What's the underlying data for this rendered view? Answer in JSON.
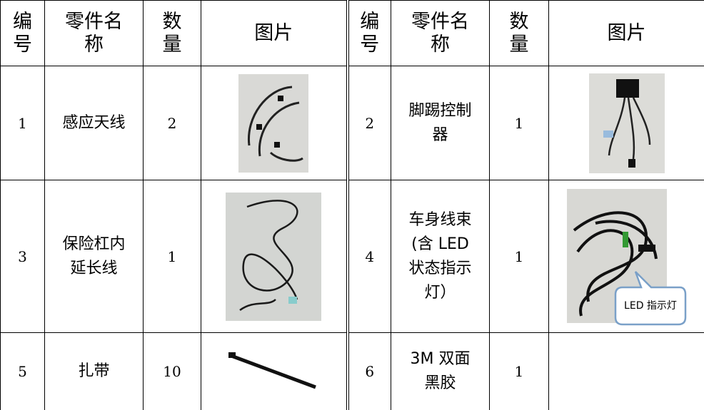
{
  "table": {
    "header": [
      "编号",
      "零件名称",
      "数量",
      "图片",
      "编号",
      "零件名称",
      "数量",
      "图片"
    ],
    "rows": [
      {
        "left": {
          "no": "1",
          "name": "感应天线",
          "qty": "2"
        },
        "right": {
          "no": "2",
          "name": "脚踢控制器",
          "qty": "1"
        }
      },
      {
        "left": {
          "no": "3",
          "name": "保险杠内延长线",
          "qty": "1"
        },
        "right": {
          "no": "4",
          "name": "车身线束(含 LED 状态指示灯）",
          "qty": "1",
          "image_callout": "LED 指示灯"
        }
      },
      {
        "left": {
          "no": "5",
          "name": "扎带",
          "qty": "10"
        },
        "right": {
          "no": "6",
          "name": "3M 双面黑胶",
          "qty": "1"
        }
      }
    ]
  }
}
